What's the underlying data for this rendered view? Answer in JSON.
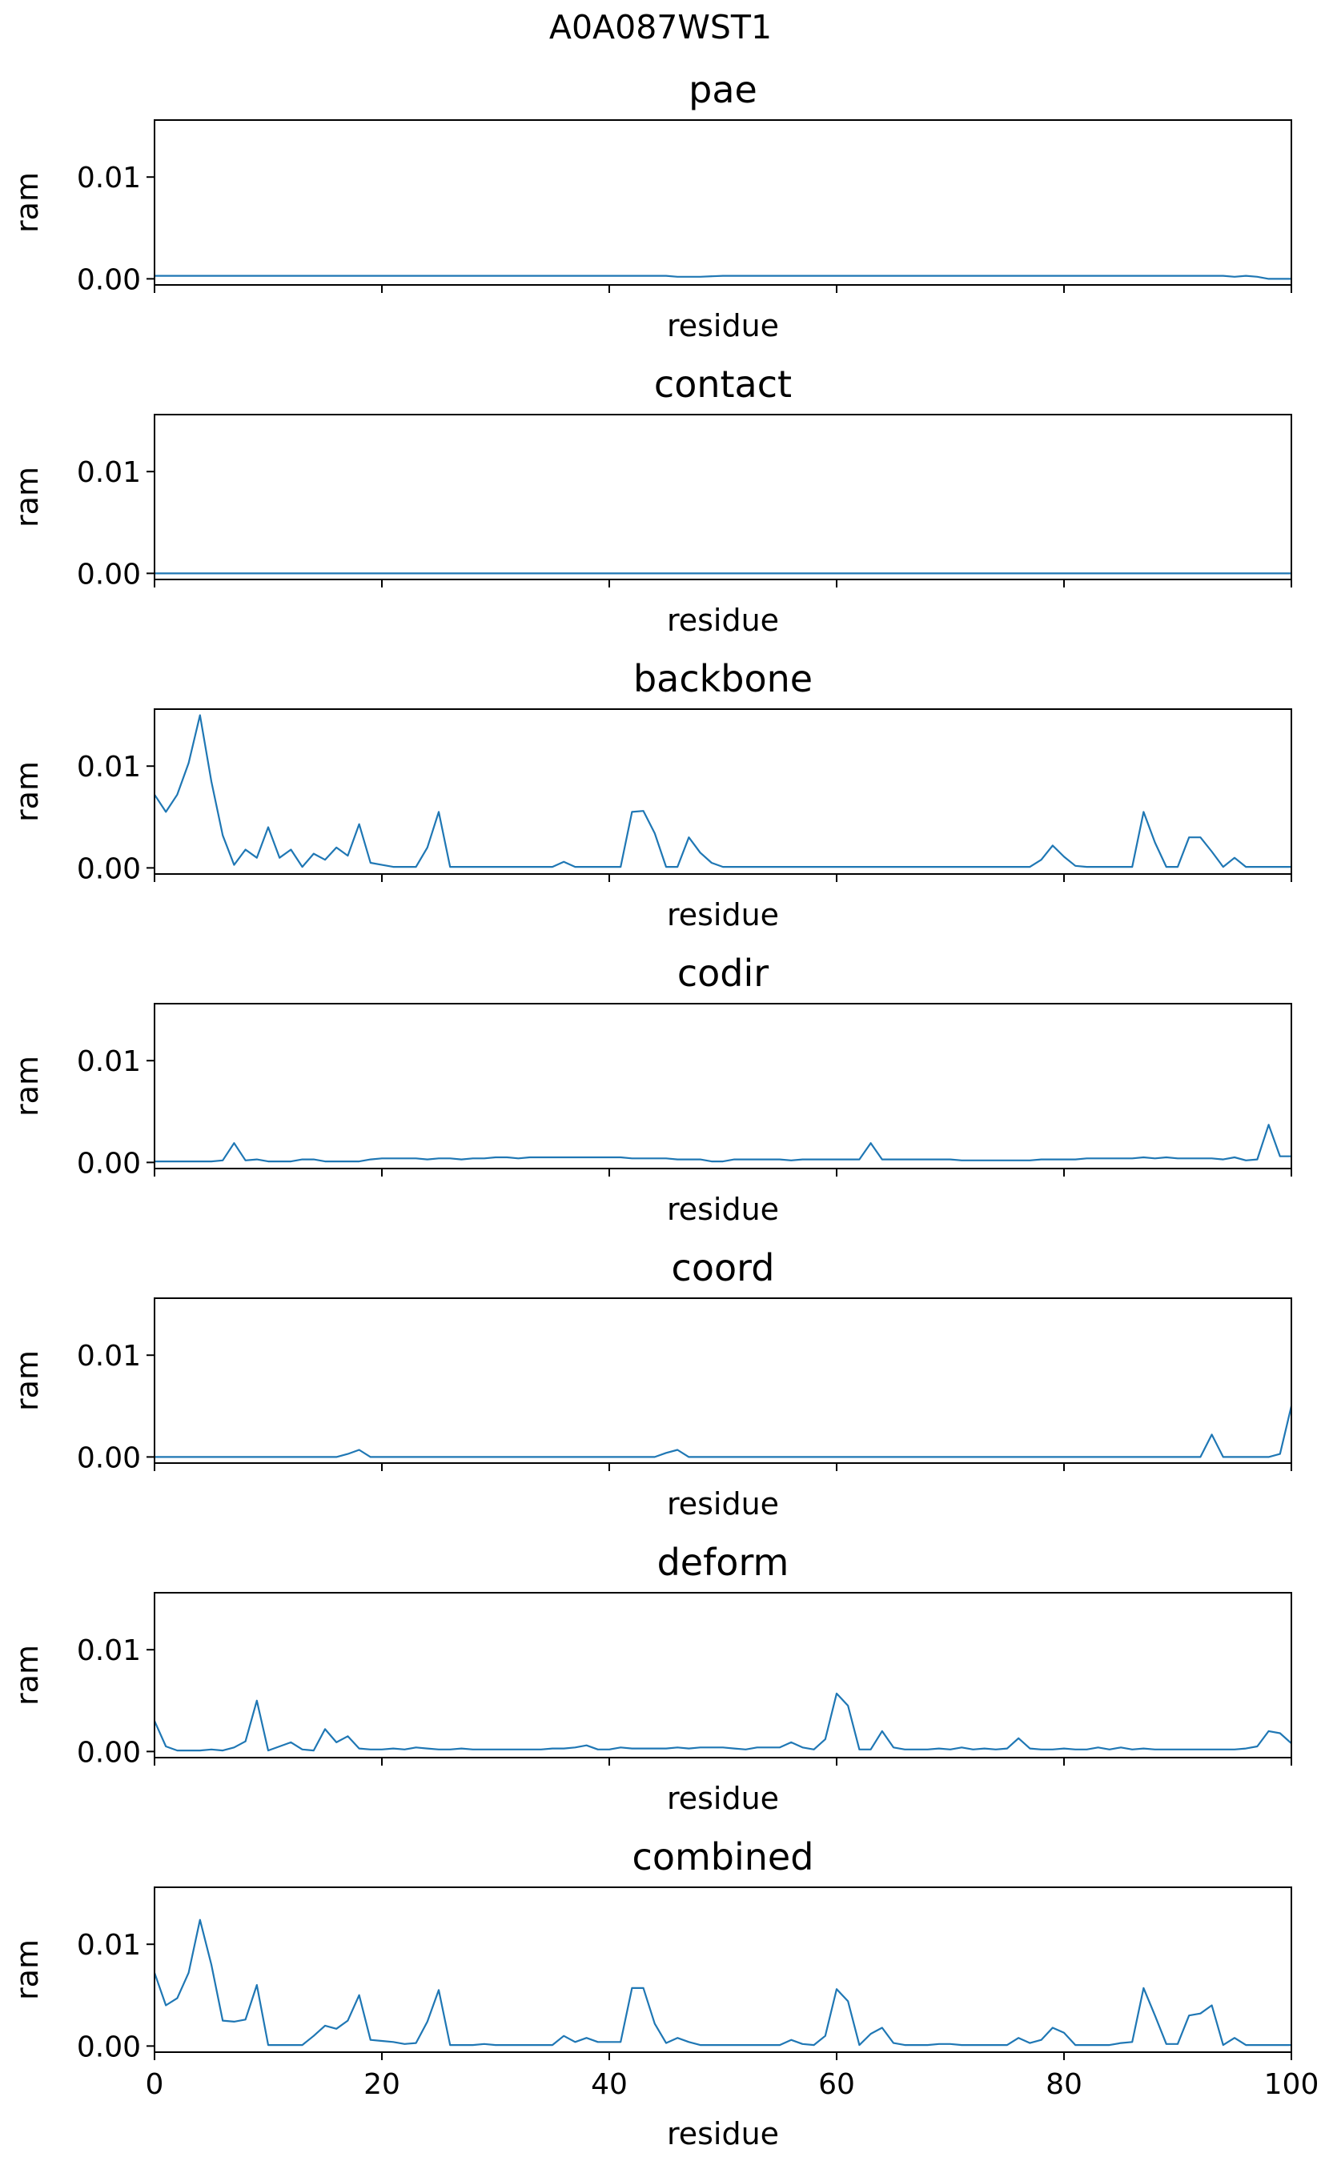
{
  "suptitle": "A0A087WST1",
  "chart_data": [
    {
      "type": "line",
      "title": "pae",
      "xlabel": "residue",
      "ylabel": "ram",
      "xlim": [
        0,
        100
      ],
      "ylim": [
        -0.0006,
        0.0156
      ],
      "yticks": [
        {
          "v": 0.0,
          "label": "0.00"
        },
        {
          "v": 0.01,
          "label": "0.01"
        }
      ],
      "xticks": [
        0,
        20,
        40,
        60,
        80,
        100
      ],
      "show_xticklabels": false,
      "color": "#1f77b4",
      "x": [
        0,
        5,
        10,
        15,
        20,
        25,
        30,
        35,
        40,
        45,
        46,
        47,
        48,
        50,
        55,
        60,
        65,
        70,
        75,
        80,
        85,
        90,
        92,
        93,
        94,
        95,
        96,
        97,
        98,
        99,
        100
      ],
      "y": [
        0.0003,
        0.0003,
        0.0003,
        0.0003,
        0.0003,
        0.0003,
        0.0003,
        0.0003,
        0.0003,
        0.0003,
        0.0002,
        0.0002,
        0.0002,
        0.0003,
        0.0003,
        0.0003,
        0.0003,
        0.0003,
        0.0003,
        0.0003,
        0.0003,
        0.0003,
        0.0003,
        0.0003,
        0.0003,
        0.0002,
        0.0003,
        0.0002,
        0.0,
        0.0,
        0.0
      ]
    },
    {
      "type": "line",
      "title": "contact",
      "xlabel": "residue",
      "ylabel": "ram",
      "xlim": [
        0,
        100
      ],
      "ylim": [
        -0.0006,
        0.0156
      ],
      "yticks": [
        {
          "v": 0.0,
          "label": "0.00"
        },
        {
          "v": 0.01,
          "label": "0.01"
        }
      ],
      "xticks": [
        0,
        20,
        40,
        60,
        80,
        100
      ],
      "show_xticklabels": false,
      "color": "#1f77b4",
      "x": [
        0,
        100
      ],
      "y": [
        0.0,
        0.0
      ]
    },
    {
      "type": "line",
      "title": "backbone",
      "xlabel": "residue",
      "ylabel": "ram",
      "xlim": [
        0,
        100
      ],
      "ylim": [
        -0.0006,
        0.0156
      ],
      "yticks": [
        {
          "v": 0.0,
          "label": "0.00"
        },
        {
          "v": 0.01,
          "label": "0.01"
        }
      ],
      "xticks": [
        0,
        20,
        40,
        60,
        80,
        100
      ],
      "show_xticklabels": false,
      "color": "#1f77b4",
      "x": [
        0,
        1,
        2,
        3,
        4,
        5,
        6,
        7,
        8,
        9,
        10,
        11,
        12,
        13,
        14,
        15,
        16,
        17,
        18,
        19,
        20,
        21,
        22,
        23,
        24,
        25,
        26,
        27,
        28,
        29,
        30,
        31,
        32,
        33,
        34,
        35,
        36,
        37,
        38,
        39,
        40,
        41,
        42,
        43,
        44,
        45,
        46,
        47,
        48,
        49,
        50,
        51,
        52,
        53,
        54,
        55,
        56,
        57,
        58,
        59,
        60,
        61,
        62,
        63,
        64,
        65,
        66,
        67,
        68,
        69,
        70,
        71,
        72,
        73,
        74,
        75,
        76,
        77,
        78,
        79,
        80,
        81,
        82,
        83,
        84,
        85,
        86,
        87,
        88,
        89,
        90,
        91,
        92,
        93,
        94,
        95,
        96,
        97,
        98,
        99,
        100
      ],
      "y": [
        0.0072,
        0.0055,
        0.0072,
        0.0103,
        0.015,
        0.0085,
        0.0032,
        0.0003,
        0.0018,
        0.001,
        0.004,
        0.001,
        0.0018,
        0.0001,
        0.0014,
        0.0008,
        0.002,
        0.0012,
        0.0043,
        0.0005,
        0.0003,
        0.0001,
        0.0001,
        0.0001,
        0.002,
        0.0055,
        0.0001,
        0.0001,
        0.0001,
        0.0001,
        0.0001,
        0.0001,
        0.0001,
        0.0001,
        0.0001,
        0.0001,
        0.0006,
        0.0001,
        0.0001,
        0.0001,
        0.0001,
        0.0001,
        0.0055,
        0.0056,
        0.0034,
        0.0001,
        0.0001,
        0.003,
        0.0015,
        0.0005,
        0.0001,
        0.0001,
        0.0001,
        0.0001,
        0.0001,
        0.0001,
        0.0001,
        0.0001,
        0.0001,
        0.0001,
        0.0001,
        0.0001,
        0.0001,
        0.0001,
        0.0001,
        0.0001,
        0.0001,
        0.0001,
        0.0001,
        0.0001,
        0.0001,
        0.0001,
        0.0001,
        0.0001,
        0.0001,
        0.0001,
        0.0001,
        0.0001,
        0.0008,
        0.0022,
        0.0011,
        0.0002,
        0.0001,
        0.0001,
        0.0001,
        0.0001,
        0.0001,
        0.0055,
        0.0025,
        0.0001,
        0.0001,
        0.003,
        0.003,
        0.0016,
        0.0001,
        0.001,
        0.0001,
        0.0001,
        0.0001,
        0.0001,
        0.0001
      ]
    },
    {
      "type": "line",
      "title": "codir",
      "xlabel": "residue",
      "ylabel": "ram",
      "xlim": [
        0,
        100
      ],
      "ylim": [
        -0.0006,
        0.0156
      ],
      "yticks": [
        {
          "v": 0.0,
          "label": "0.00"
        },
        {
          "v": 0.01,
          "label": "0.01"
        }
      ],
      "xticks": [
        0,
        20,
        40,
        60,
        80,
        100
      ],
      "show_xticklabels": false,
      "color": "#1f77b4",
      "x": [
        0,
        1,
        2,
        3,
        4,
        5,
        6,
        7,
        8,
        9,
        10,
        11,
        12,
        13,
        14,
        15,
        16,
        17,
        18,
        19,
        20,
        21,
        22,
        23,
        24,
        25,
        26,
        27,
        28,
        29,
        30,
        31,
        32,
        33,
        34,
        35,
        36,
        37,
        38,
        39,
        40,
        41,
        42,
        43,
        44,
        45,
        46,
        47,
        48,
        49,
        50,
        51,
        52,
        53,
        54,
        55,
        56,
        57,
        58,
        59,
        60,
        61,
        62,
        63,
        64,
        65,
        66,
        67,
        68,
        69,
        70,
        71,
        72,
        73,
        74,
        75,
        76,
        77,
        78,
        79,
        80,
        81,
        82,
        83,
        84,
        85,
        86,
        87,
        88,
        89,
        90,
        91,
        92,
        93,
        94,
        95,
        96,
        97,
        98,
        99,
        100
      ],
      "y": [
        0.0001,
        0.0001,
        0.0001,
        0.0001,
        0.0001,
        0.0001,
        0.0002,
        0.0019,
        0.0002,
        0.0003,
        0.0001,
        0.0001,
        0.0001,
        0.0003,
        0.0003,
        0.0001,
        0.0001,
        0.0001,
        0.0001,
        0.0003,
        0.0004,
        0.0004,
        0.0004,
        0.0004,
        0.0003,
        0.0004,
        0.0004,
        0.0003,
        0.0004,
        0.0004,
        0.0005,
        0.0005,
        0.0004,
        0.0005,
        0.0005,
        0.0005,
        0.0005,
        0.0005,
        0.0005,
        0.0005,
        0.0005,
        0.0005,
        0.0004,
        0.0004,
        0.0004,
        0.0004,
        0.0003,
        0.0003,
        0.0003,
        0.0001,
        0.0001,
        0.0003,
        0.0003,
        0.0003,
        0.0003,
        0.0003,
        0.0002,
        0.0003,
        0.0003,
        0.0003,
        0.0003,
        0.0003,
        0.0003,
        0.0019,
        0.0003,
        0.0003,
        0.0003,
        0.0003,
        0.0003,
        0.0003,
        0.0003,
        0.0002,
        0.0002,
        0.0002,
        0.0002,
        0.0002,
        0.0002,
        0.0002,
        0.0003,
        0.0003,
        0.0003,
        0.0003,
        0.0004,
        0.0004,
        0.0004,
        0.0004,
        0.0004,
        0.0005,
        0.0004,
        0.0005,
        0.0004,
        0.0004,
        0.0004,
        0.0004,
        0.0003,
        0.0005,
        0.0002,
        0.0003,
        0.0037,
        0.0006,
        0.0006
      ]
    },
    {
      "type": "line",
      "title": "coord",
      "xlabel": "residue",
      "ylabel": "ram",
      "xlim": [
        0,
        100
      ],
      "ylim": [
        -0.0006,
        0.0156
      ],
      "yticks": [
        {
          "v": 0.0,
          "label": "0.00"
        },
        {
          "v": 0.01,
          "label": "0.01"
        }
      ],
      "xticks": [
        0,
        20,
        40,
        60,
        80,
        100
      ],
      "show_xticklabels": false,
      "color": "#1f77b4",
      "x": [
        0,
        16,
        17,
        18,
        19,
        20,
        44,
        45,
        46,
        47,
        48,
        92,
        93,
        94,
        95,
        96,
        97,
        98,
        99,
        100
      ],
      "y": [
        0.0,
        0.0,
        0.0003,
        0.0007,
        0.0,
        0.0,
        0.0,
        0.0004,
        0.0007,
        0.0,
        0.0,
        0.0,
        0.0022,
        0.0,
        0.0,
        0.0,
        0.0,
        0.0,
        0.0003,
        0.005
      ]
    },
    {
      "type": "line",
      "title": "deform",
      "xlabel": "residue",
      "ylabel": "ram",
      "xlim": [
        0,
        100
      ],
      "ylim": [
        -0.0006,
        0.0156
      ],
      "yticks": [
        {
          "v": 0.0,
          "label": "0.00"
        },
        {
          "v": 0.01,
          "label": "0.01"
        }
      ],
      "xticks": [
        0,
        20,
        40,
        60,
        80,
        100
      ],
      "show_xticklabels": false,
      "color": "#1f77b4",
      "x": [
        0,
        1,
        2,
        3,
        4,
        5,
        6,
        7,
        8,
        9,
        10,
        11,
        12,
        13,
        14,
        15,
        16,
        17,
        18,
        19,
        20,
        21,
        22,
        23,
        24,
        25,
        26,
        27,
        28,
        29,
        30,
        31,
        32,
        33,
        34,
        35,
        36,
        37,
        38,
        39,
        40,
        41,
        42,
        43,
        44,
        45,
        46,
        47,
        48,
        49,
        50,
        51,
        52,
        53,
        54,
        55,
        56,
        57,
        58,
        59,
        60,
        61,
        62,
        63,
        64,
        65,
        66,
        67,
        68,
        69,
        70,
        71,
        72,
        73,
        74,
        75,
        76,
        77,
        78,
        79,
        80,
        81,
        82,
        83,
        84,
        85,
        86,
        87,
        88,
        89,
        90,
        91,
        92,
        93,
        94,
        95,
        96,
        97,
        98,
        99,
        100
      ],
      "y": [
        0.003,
        0.0005,
        0.0001,
        0.0001,
        0.0001,
        0.0002,
        0.0001,
        0.0004,
        0.001,
        0.005,
        0.0001,
        0.0005,
        0.0009,
        0.0002,
        0.0001,
        0.0022,
        0.0009,
        0.0015,
        0.0003,
        0.0002,
        0.0002,
        0.0003,
        0.0002,
        0.0004,
        0.0003,
        0.0002,
        0.0002,
        0.0003,
        0.0002,
        0.0002,
        0.0002,
        0.0002,
        0.0002,
        0.0002,
        0.0002,
        0.0003,
        0.0003,
        0.0004,
        0.0006,
        0.0002,
        0.0002,
        0.0004,
        0.0003,
        0.0003,
        0.0003,
        0.0003,
        0.0004,
        0.0003,
        0.0004,
        0.0004,
        0.0004,
        0.0003,
        0.0002,
        0.0004,
        0.0004,
        0.0004,
        0.0009,
        0.0004,
        0.0002,
        0.0012,
        0.0057,
        0.0045,
        0.0002,
        0.0002,
        0.002,
        0.0004,
        0.0002,
        0.0002,
        0.0002,
        0.0003,
        0.0002,
        0.0004,
        0.0002,
        0.0003,
        0.0002,
        0.0003,
        0.0013,
        0.0003,
        0.0002,
        0.0002,
        0.0003,
        0.0002,
        0.0002,
        0.0004,
        0.0002,
        0.0004,
        0.0002,
        0.0003,
        0.0002,
        0.0002,
        0.0002,
        0.0002,
        0.0002,
        0.0002,
        0.0002,
        0.0002,
        0.0003,
        0.0005,
        0.002,
        0.0018,
        0.0008
      ]
    },
    {
      "type": "line",
      "title": "combined",
      "xlabel": "residue",
      "ylabel": "ram",
      "xlim": [
        0,
        100
      ],
      "ylim": [
        -0.0006,
        0.0156
      ],
      "yticks": [
        {
          "v": 0.0,
          "label": "0.00"
        },
        {
          "v": 0.01,
          "label": "0.01"
        }
      ],
      "xticks": [
        0,
        20,
        40,
        60,
        80,
        100
      ],
      "show_xticklabels": true,
      "color": "#1f77b4",
      "x": [
        0,
        1,
        2,
        3,
        4,
        5,
        6,
        7,
        8,
        9,
        10,
        11,
        12,
        13,
        14,
        15,
        16,
        17,
        18,
        19,
        20,
        21,
        22,
        23,
        24,
        25,
        26,
        27,
        28,
        29,
        30,
        31,
        32,
        33,
        34,
        35,
        36,
        37,
        38,
        39,
        40,
        41,
        42,
        43,
        44,
        45,
        46,
        47,
        48,
        49,
        50,
        51,
        52,
        53,
        54,
        55,
        56,
        57,
        58,
        59,
        60,
        61,
        62,
        63,
        64,
        65,
        66,
        67,
        68,
        69,
        70,
        71,
        72,
        73,
        74,
        75,
        76,
        77,
        78,
        79,
        80,
        81,
        82,
        83,
        84,
        85,
        86,
        87,
        88,
        89,
        90,
        91,
        92,
        93,
        94,
        95,
        96,
        97,
        98,
        99,
        100
      ],
      "y": [
        0.0072,
        0.004,
        0.0047,
        0.0072,
        0.0124,
        0.008,
        0.0025,
        0.0024,
        0.0026,
        0.006,
        0.0001,
        0.0001,
        0.0001,
        0.0001,
        0.001,
        0.002,
        0.0017,
        0.0025,
        0.005,
        0.0006,
        0.0005,
        0.0004,
        0.0002,
        0.0003,
        0.0024,
        0.0055,
        0.0001,
        0.0001,
        0.0001,
        0.0002,
        0.0001,
        0.0001,
        0.0001,
        0.0001,
        0.0001,
        0.0001,
        0.001,
        0.0004,
        0.0008,
        0.0004,
        0.0004,
        0.0004,
        0.0057,
        0.0057,
        0.0022,
        0.0003,
        0.0008,
        0.0004,
        0.0001,
        0.0001,
        0.0001,
        0.0001,
        0.0001,
        0.0001,
        0.0001,
        0.0001,
        0.0006,
        0.0002,
        0.0001,
        0.001,
        0.0056,
        0.0044,
        0.0001,
        0.0012,
        0.0018,
        0.0003,
        0.0001,
        0.0001,
        0.0001,
        0.0002,
        0.0002,
        0.0001,
        0.0001,
        0.0001,
        0.0001,
        0.0001,
        0.0008,
        0.0003,
        0.0006,
        0.0018,
        0.0013,
        0.0001,
        0.0001,
        0.0001,
        0.0001,
        0.0003,
        0.0004,
        0.0057,
        0.003,
        0.0002,
        0.0002,
        0.003,
        0.0032,
        0.004,
        0.0001,
        0.0008,
        0.0001,
        0.0001,
        0.0001,
        0.0001,
        0.0001
      ]
    }
  ]
}
